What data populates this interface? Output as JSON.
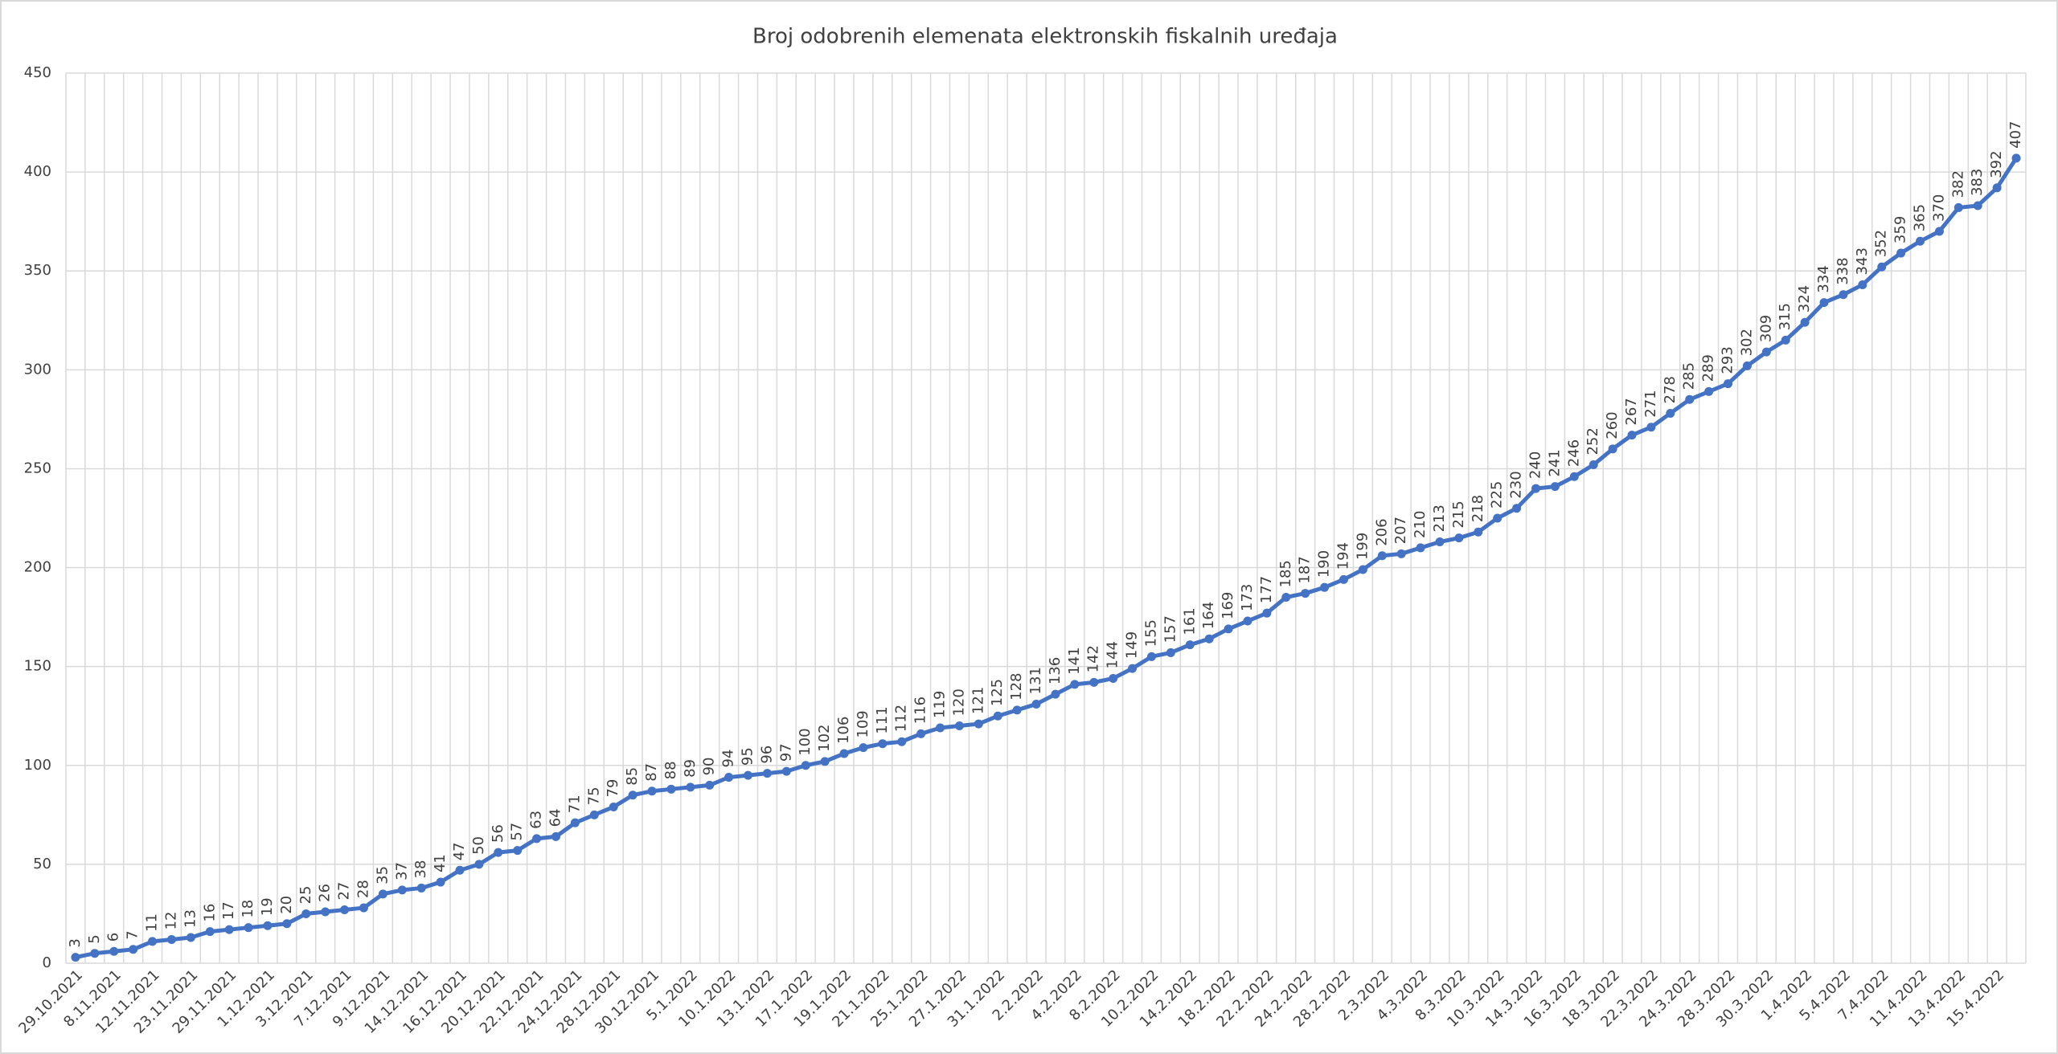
{
  "chart_data": {
    "type": "line",
    "title": "Broj odobrenih elemenata elektronskih fiskalnih uređaja",
    "categories": [
      "29.10.2021",
      null,
      "8.11.2021",
      null,
      "12.11.2021",
      null,
      "23.11.2021",
      null,
      "29.11.2021",
      null,
      "1.12.2021",
      null,
      "3.12.2021",
      null,
      "7.12.2021",
      null,
      "9.12.2021",
      null,
      "14.12.2021",
      null,
      "16.12.2021",
      null,
      "20.12.2021",
      null,
      "22.12.2021",
      null,
      "24.12.2021",
      null,
      "28.12.2021",
      null,
      "30.12.2021",
      null,
      "5.1.2022",
      null,
      "10.1.2022",
      null,
      "13.1.2022",
      null,
      "17.1.2022",
      null,
      "19.1.2022",
      null,
      "21.1.2022",
      null,
      "25.1.2022",
      null,
      "27.1.2022",
      null,
      "31.1.2022",
      null,
      "2.2.2022",
      null,
      "4.2.2022",
      null,
      "8.2.2022",
      null,
      "10.2.2022",
      null,
      "14.2.2022",
      null,
      "18.2.2022",
      null,
      "22.2.2022",
      null,
      "24.2.2022",
      null,
      "28.2.2022",
      null,
      "2.3.2022",
      null,
      "4.3.2022",
      null,
      "8.3.2022",
      null,
      "10.3.2022",
      null,
      "14.3.2022",
      null,
      "16.3.2022",
      null,
      "18.3.2022",
      null,
      "22.3.2022",
      null,
      "24.3.2022",
      null,
      "28.3.2022",
      null,
      "30.3.2022",
      null,
      "1.4.2022",
      null,
      "5.4.2022",
      null,
      "7.4.2022",
      null,
      "11.4.2022",
      null,
      "13.4.2022",
      null,
      "15.4.2022",
      null
    ],
    "values": [
      3,
      5,
      6,
      7,
      11,
      12,
      13,
      16,
      17,
      18,
      19,
      20,
      25,
      26,
      27,
      28,
      35,
      37,
      38,
      41,
      47,
      50,
      56,
      57,
      63,
      64,
      71,
      75,
      79,
      85,
      87,
      88,
      89,
      90,
      94,
      95,
      96,
      97,
      100,
      102,
      106,
      109,
      111,
      112,
      116,
      119,
      120,
      121,
      125,
      128,
      131,
      136,
      141,
      142,
      144,
      149,
      155,
      157,
      161,
      164,
      169,
      173,
      177,
      185,
      187,
      190,
      194,
      199,
      206,
      207,
      210,
      213,
      215,
      218,
      225,
      230,
      240,
      241,
      246,
      252,
      260,
      267,
      271,
      278,
      285,
      289,
      293,
      302,
      309,
      315,
      324,
      334,
      338,
      343,
      352,
      359,
      365,
      370,
      382,
      383,
      392,
      407
    ],
    "color": "#4472c4",
    "ylim": [
      0,
      450
    ],
    "yticks": [
      0,
      50,
      100,
      150,
      200,
      250,
      300,
      350,
      400,
      450
    ],
    "grid": true
  }
}
